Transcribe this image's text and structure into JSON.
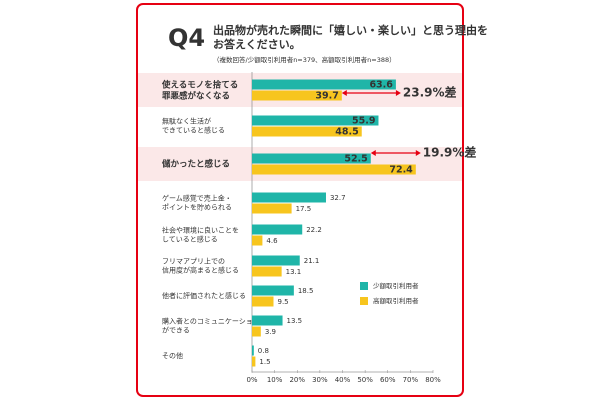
{
  "chart_data": {
    "type": "hbar",
    "title": "Q4",
    "subtitle": "出品物が売れた瞬間に「嬉しい・楽しい」と思う理由を\nお答えください。",
    "note": "（複数回答/少額取引利用者n=379、高額取引利用者n=388）",
    "categories": [
      "使えるモノを捨てる\n罪悪感がなくなる",
      "無駄なく生活が\nできていると感じる",
      "儲かったと感じる",
      "ゲーム感覚で売上金・\nポイントを貯められる",
      "社会や環境に良いことを\nしていると感じる",
      "フリマアプリ上での\n信用度が高まると感じる",
      "他者に評価されたと感じる",
      "購入者とのコミュニケーション\nができる",
      "その他"
    ],
    "series": [
      {
        "name": "少額取引利用者",
        "color": "#1fb5a8",
        "values": [
          63.6,
          55.9,
          52.5,
          32.7,
          22.2,
          21.1,
          18.5,
          13.5,
          0.8
        ]
      },
      {
        "name": "高額取引利用者",
        "color": "#f7c51e",
        "values": [
          39.7,
          48.5,
          72.4,
          17.5,
          4.6,
          13.1,
          9.5,
          3.9,
          1.5
        ]
      }
    ],
    "annotations": [
      "23.9%差",
      "19.9%差"
    ],
    "xlim": [
      0,
      80
    ],
    "xticks": [
      {
        "value": 0,
        "label": "0%"
      },
      {
        "value": 10,
        "label": "10%"
      },
      {
        "value": 20,
        "label": "20%"
      },
      {
        "value": 30,
        "label": "30%"
      },
      {
        "value": 40,
        "label": "40%"
      },
      {
        "value": 50,
        "label": "50%"
      },
      {
        "value": 60,
        "label": "60%"
      },
      {
        "value": 70,
        "label": "70%"
      },
      {
        "value": 80,
        "label": "80%"
      }
    ]
  }
}
